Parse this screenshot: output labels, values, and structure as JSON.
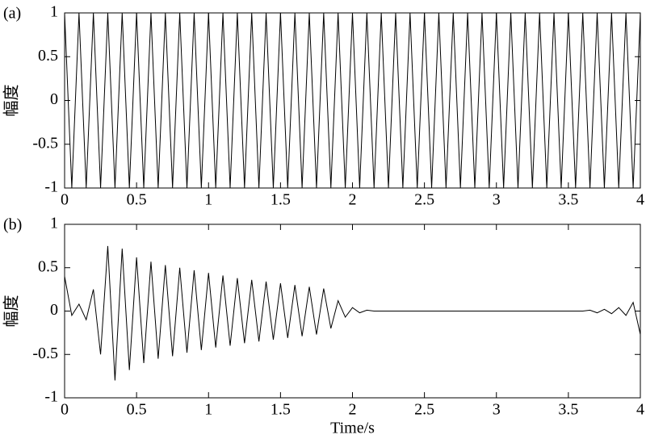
{
  "chart_data": [
    {
      "type": "line",
      "panel_label": "(a)",
      "ylabel": "幅度",
      "color": "#000000",
      "x": [
        0,
        0.05,
        0.1,
        0.15,
        0.2,
        0.25,
        0.3,
        0.35,
        0.4,
        0.45,
        0.5,
        0.55,
        0.6,
        0.65,
        0.7,
        0.75,
        0.8,
        0.85,
        0.9,
        0.95,
        1,
        1.05,
        1.1,
        1.15,
        1.2,
        1.25,
        1.3,
        1.35,
        1.4,
        1.45,
        1.5,
        1.55,
        1.6,
        1.65,
        1.7,
        1.75,
        1.8,
        1.85,
        1.9,
        1.95,
        2,
        2.05,
        2.1,
        2.15,
        2.2,
        2.25,
        2.3,
        2.35,
        2.4,
        2.45,
        2.5,
        2.55,
        2.6,
        2.65,
        2.7,
        2.75,
        2.8,
        2.85,
        2.9,
        2.95,
        3,
        3.05,
        3.1,
        3.15,
        3.2,
        3.25,
        3.3,
        3.35,
        3.4,
        3.45,
        3.5,
        3.55,
        3.6,
        3.65,
        3.7,
        3.75,
        3.8,
        3.85,
        3.9,
        3.95,
        4
      ],
      "values": [
        1,
        -1,
        1,
        -1,
        1,
        -1,
        1,
        -1,
        1,
        -1,
        1,
        -1,
        1,
        -1,
        1,
        -1,
        1,
        -1,
        1,
        -1,
        1,
        -1,
        1,
        -1,
        1,
        -1,
        1,
        -1,
        1,
        -1,
        1,
        -1,
        1,
        -1,
        1,
        -1,
        1,
        -1,
        1,
        -1,
        1,
        -1,
        1,
        -1,
        1,
        -1,
        1,
        -1,
        1,
        -1,
        1,
        -1,
        1,
        -1,
        1,
        -1,
        1,
        -1,
        1,
        -1,
        1,
        -1,
        1,
        -1,
        1,
        -1,
        1,
        -1,
        1,
        -1,
        1,
        -1,
        1,
        -1,
        1,
        -1,
        1,
        -1,
        1,
        -1,
        1
      ],
      "xlim": [
        0,
        4
      ],
      "xticks": [
        0,
        0.5,
        1,
        1.5,
        2,
        2.5,
        3,
        3.5,
        4
      ],
      "ylim": [
        -1,
        1
      ],
      "yticks": [
        -1,
        -0.5,
        0,
        0.5,
        1
      ]
    },
    {
      "type": "line",
      "panel_label": "(b)",
      "ylabel": "幅度",
      "xlabel": "Time/s",
      "color": "#000000",
      "x": [
        0,
        0.05,
        0.1,
        0.15,
        0.2,
        0.25,
        0.3,
        0.35,
        0.4,
        0.45,
        0.5,
        0.55,
        0.6,
        0.65,
        0.7,
        0.75,
        0.8,
        0.85,
        0.9,
        0.95,
        1,
        1.05,
        1.1,
        1.15,
        1.2,
        1.25,
        1.3,
        1.35,
        1.4,
        1.45,
        1.5,
        1.55,
        1.6,
        1.65,
        1.7,
        1.75,
        1.8,
        1.85,
        1.9,
        1.95,
        2,
        2.05,
        2.1,
        2.15,
        2.2,
        2.25,
        2.3,
        2.35,
        2.4,
        2.45,
        2.5,
        2.55,
        2.6,
        2.65,
        2.7,
        2.75,
        2.8,
        2.85,
        2.9,
        2.95,
        3,
        3.05,
        3.1,
        3.15,
        3.2,
        3.25,
        3.3,
        3.35,
        3.4,
        3.45,
        3.5,
        3.55,
        3.6,
        3.65,
        3.7,
        3.75,
        3.8,
        3.85,
        3.9,
        3.95,
        4
      ],
      "values": [
        0.4,
        -0.05,
        0.08,
        -0.1,
        0.25,
        -0.5,
        0.75,
        -0.8,
        0.72,
        -0.68,
        0.62,
        -0.6,
        0.57,
        -0.55,
        0.53,
        -0.52,
        0.5,
        -0.48,
        0.47,
        -0.45,
        0.44,
        -0.42,
        0.41,
        -0.4,
        0.38,
        -0.37,
        0.36,
        -0.35,
        0.34,
        -0.33,
        0.32,
        -0.31,
        0.3,
        -0.29,
        0.28,
        -0.27,
        0.26,
        -0.2,
        0.12,
        -0.07,
        0.04,
        -0.02,
        0.01,
        0,
        0,
        0,
        0,
        0,
        0,
        0,
        0,
        0,
        0,
        0,
        0,
        0,
        0,
        0,
        0,
        0,
        0,
        0,
        0,
        0,
        0,
        0,
        0,
        0,
        0,
        0,
        0,
        0,
        0,
        0.01,
        -0.02,
        0.02,
        -0.03,
        0.04,
        -0.05,
        0.1,
        -0.27
      ],
      "xlim": [
        0,
        4
      ],
      "xticks": [
        0,
        0.5,
        1,
        1.5,
        2,
        2.5,
        3,
        3.5,
        4
      ],
      "ylim": [
        -1,
        1
      ],
      "yticks": [
        -1,
        -0.5,
        0,
        0.5,
        1
      ]
    }
  ]
}
